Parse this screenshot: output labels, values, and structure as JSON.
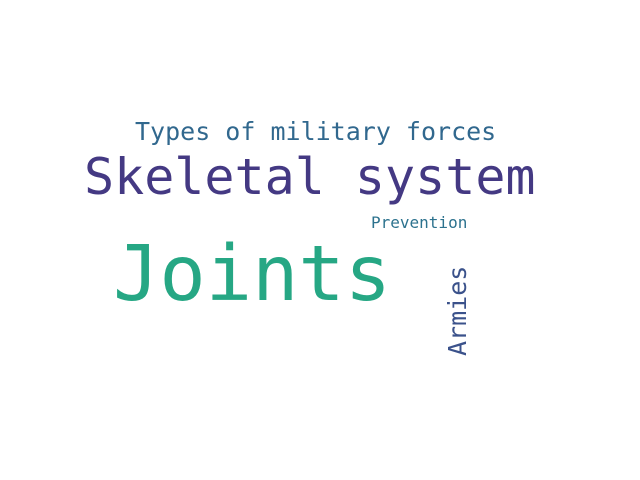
{
  "words": {
    "skeletal_system": {
      "text": "Skeletal system",
      "color": "#443983"
    },
    "types_of_military_forces": {
      "text": "Types of military forces",
      "color": "#31688e"
    },
    "joints": {
      "text": "Joints",
      "color": "#26a784"
    },
    "prevention": {
      "text": "Prevention",
      "color": "#2c728e"
    },
    "armies": {
      "text": "Armies",
      "color": "#3b528b",
      "orientation": "vertical"
    }
  }
}
